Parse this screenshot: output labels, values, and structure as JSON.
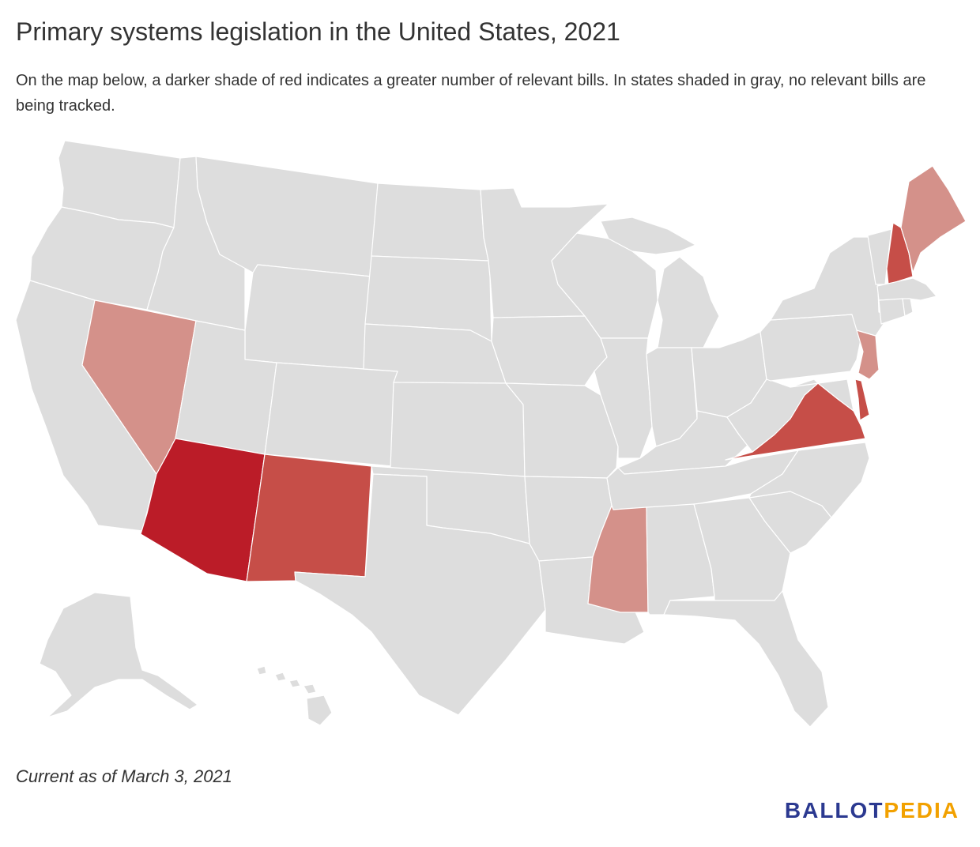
{
  "title": "Primary systems legislation in the United States, 2021",
  "subtitle": "On the map below, a darker shade of red indicates a greater number of relevant bills. In states shaded in gray, no relevant bills are being tracked.",
  "note": "Current as of March 3, 2021",
  "logo": {
    "part1": "BALLOT",
    "part2": "PEDIA"
  },
  "colors": {
    "none": "#dddddd",
    "light": "#d4918a",
    "medium": "#c64e48",
    "dark": "#bb1c28",
    "logo_blue": "#2b3990",
    "logo_gold": "#f2a100"
  },
  "states": {
    "WA": "none",
    "OR": "none",
    "CA": "none",
    "NV": "light",
    "ID": "none",
    "MT": "none",
    "WY": "none",
    "UT": "none",
    "AZ": "dark",
    "CO": "none",
    "NM": "medium",
    "ND": "none",
    "SD": "none",
    "NE": "none",
    "KS": "none",
    "OK": "none",
    "TX": "none",
    "MN": "none",
    "IA": "none",
    "MO": "none",
    "AR": "none",
    "LA": "none",
    "WI": "none",
    "IL": "none",
    "MI": "none",
    "IN": "none",
    "OH": "none",
    "KY": "none",
    "TN": "none",
    "MS": "light",
    "AL": "none",
    "GA": "none",
    "FL": "none",
    "SC": "none",
    "NC": "none",
    "VA": "medium",
    "WV": "none",
    "MD": "none",
    "DE": "medium",
    "PA": "none",
    "NJ": "light",
    "NY": "none",
    "CT": "none",
    "RI": "none",
    "MA": "none",
    "VT": "none",
    "NH": "medium",
    "ME": "light",
    "AK": "none",
    "HI": "none"
  }
}
